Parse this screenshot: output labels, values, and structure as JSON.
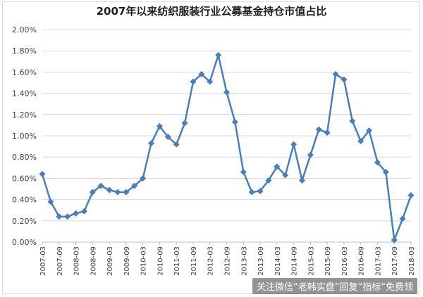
{
  "title": "2007年以来纺织服装行业公募基金持仓市值占比",
  "watermark": "关注微信“老韩实盘”回复“指标”免费领",
  "chart_data": {
    "type": "line",
    "x": [
      "2007-03",
      "2007-06",
      "2007-09",
      "2007-12",
      "2008-03",
      "2008-06",
      "2008-09",
      "2008-12",
      "2009-03",
      "2009-06",
      "2009-09",
      "2009-12",
      "2010-03",
      "2010-06",
      "2010-09",
      "2010-12",
      "2011-03",
      "2011-06",
      "2011-09",
      "2011-12",
      "2012-03",
      "2012-06",
      "2012-09",
      "2012-12",
      "2013-03",
      "2013-06",
      "2013-09",
      "2013-12",
      "2014-03",
      "2014-06",
      "2014-09",
      "2014-12",
      "2015-03",
      "2015-06",
      "2015-09",
      "2015-12",
      "2016-03",
      "2016-06",
      "2016-09",
      "2016-12",
      "2017-03",
      "2017-06",
      "2017-09",
      "2017-12",
      "2018-03"
    ],
    "tick_labels": [
      "2007-03",
      "2007-09",
      "2008-03",
      "2008-09",
      "2009-03",
      "2009-09",
      "2010-03",
      "2010-09",
      "2011-03",
      "2011-09",
      "2012-03",
      "2012-09",
      "2013-03",
      "2013-09",
      "2014-03",
      "2014-09",
      "2015-03",
      "2015-09",
      "2016-03",
      "2016-09",
      "2017-03",
      "2017-09",
      "2018-03"
    ],
    "series": [
      {
        "values": [
          0.64,
          0.38,
          0.24,
          0.24,
          0.27,
          0.29,
          0.47,
          0.53,
          0.49,
          0.47,
          0.47,
          0.53,
          0.6,
          0.93,
          1.09,
          0.99,
          0.92,
          1.12,
          1.51,
          1.58,
          1.51,
          1.76,
          1.41,
          1.13,
          0.66,
          0.47,
          0.48,
          0.58,
          0.71,
          0.63,
          0.92,
          0.58,
          0.82,
          1.06,
          1.03,
          1.58,
          1.53,
          1.14,
          0.95,
          1.05,
          0.75,
          0.66,
          0.02,
          0.22,
          0.44
        ]
      }
    ],
    "y_ticks": [
      "0.00%",
      "0.20%",
      "0.40%",
      "0.60%",
      "0.80%",
      "1.00%",
      "1.20%",
      "1.40%",
      "1.60%",
      "1.80%",
      "2.00%"
    ],
    "ylim": [
      0,
      2.0
    ],
    "y_unit": "%",
    "grid": true,
    "line_color": "#4a7ebb"
  }
}
